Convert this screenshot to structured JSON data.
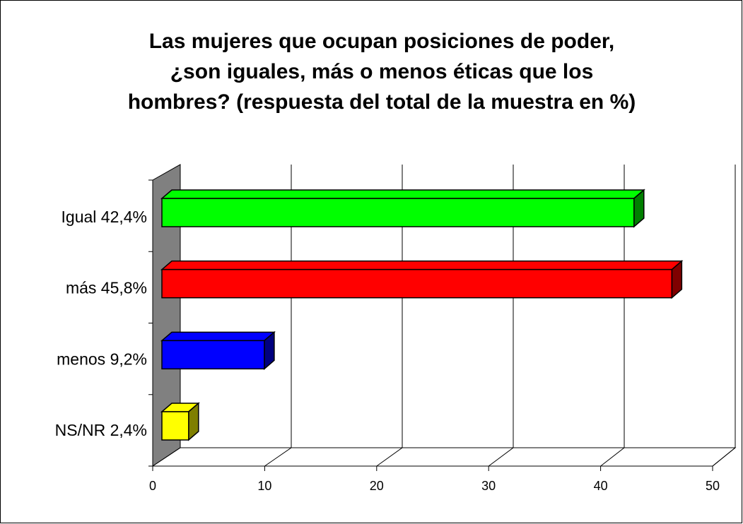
{
  "chart_data": {
    "type": "bar3d_horizontal",
    "title": [
      "Las mujeres que ocupan posiciones de poder,",
      "¿son iguales, más o menos éticas que los",
      "hombres? (respuesta del total de la muestra en %)"
    ],
    "categories": [
      "Igual  42,4%",
      "más 45,8%",
      "menos  9,2%",
      "NS/NR 2,4%"
    ],
    "values": [
      42.4,
      45.8,
      9.2,
      2.4
    ],
    "colors": [
      "#00ff00",
      "#ff0000",
      "#0000ff",
      "#ffff00"
    ],
    "xlim": [
      0,
      50
    ],
    "xticks": [
      0,
      10,
      20,
      30,
      40,
      50
    ],
    "grid": true
  }
}
